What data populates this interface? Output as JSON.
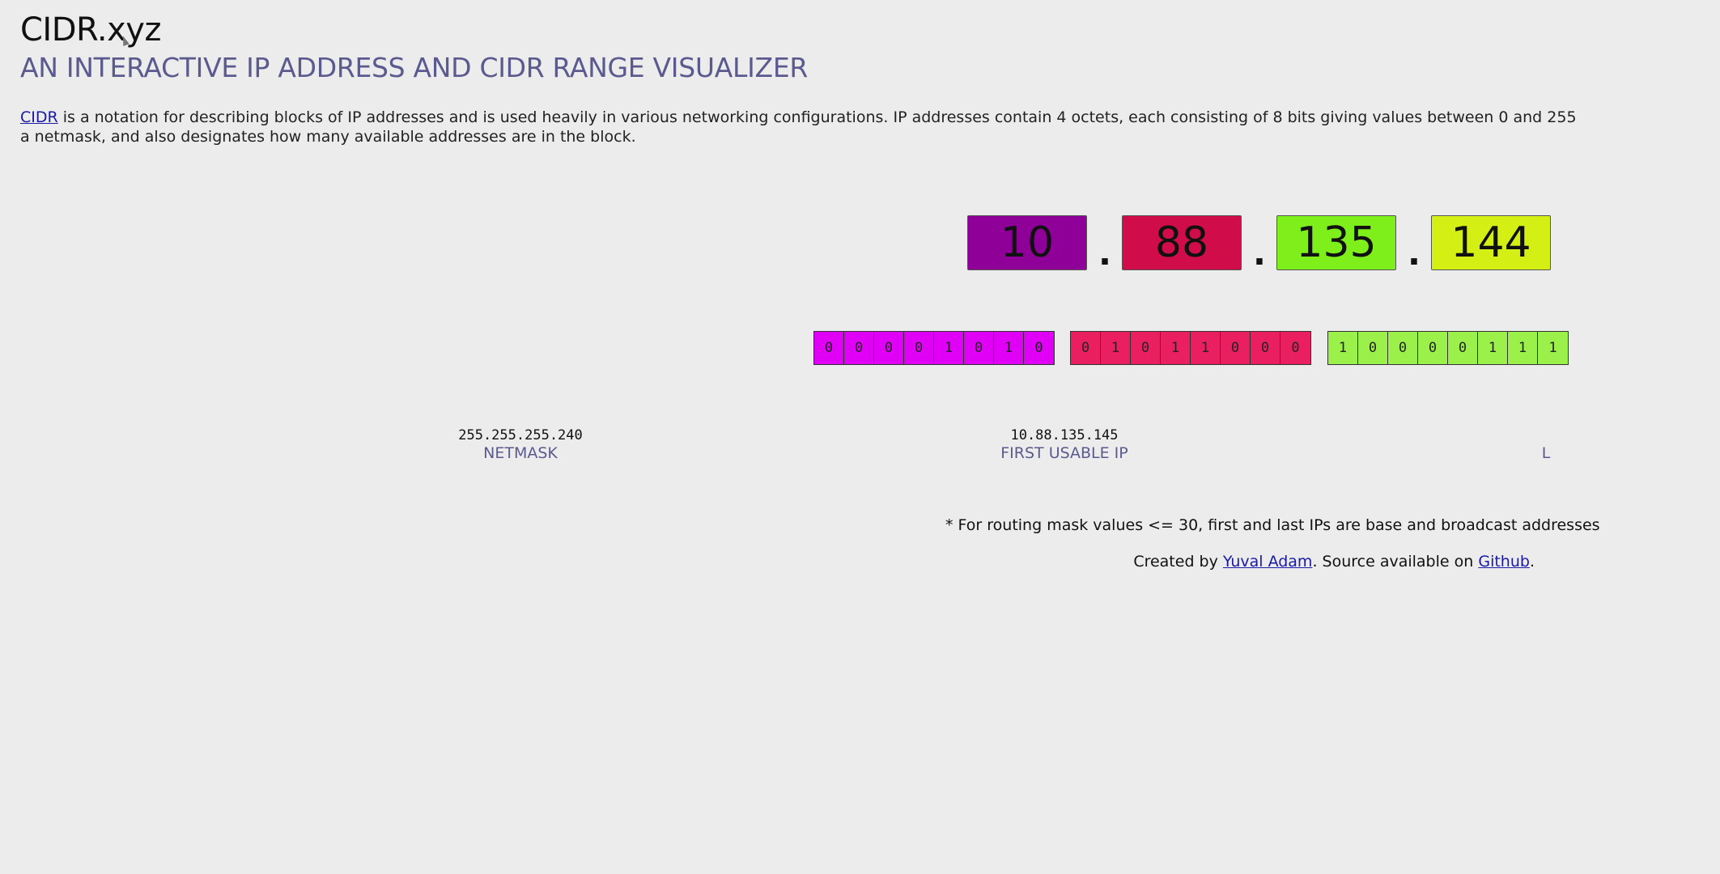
{
  "header": {
    "title": "CIDR.xyz",
    "subtitle": "AN INTERACTIVE IP ADDRESS AND CIDR RANGE VISUALIZER"
  },
  "intro": {
    "link_text": "CIDR",
    "line1_rest": " is a notation for describing blocks of IP addresses and is used heavily in various networking configurations. IP addresses contain 4 octets, each consisting of 8 bits giving values between 0 and 255",
    "line2": "a netmask, and also designates how many available addresses are in the block."
  },
  "ip": {
    "octets": [
      {
        "value": "10",
        "color": "#8e0097"
      },
      {
        "value": "88",
        "color": "#d00d4a"
      },
      {
        "value": "135",
        "color": "#7fef1c"
      },
      {
        "value": "144",
        "color": "#d3ef13"
      }
    ],
    "separator": "."
  },
  "bits": [
    {
      "color": "#e000f5",
      "values": [
        "0",
        "0",
        "0",
        "0",
        "1",
        "0",
        "1",
        "0"
      ]
    },
    {
      "color": "#ea1f62",
      "values": [
        "0",
        "1",
        "0",
        "1",
        "1",
        "0",
        "0",
        "0"
      ]
    },
    {
      "color": "#9cf04a",
      "values": [
        "1",
        "0",
        "0",
        "0",
        "0",
        "1",
        "1",
        "1"
      ]
    }
  ],
  "stats": {
    "netmask": {
      "value": "255.255.255.240",
      "label": "NETMASK"
    },
    "first_usable": {
      "value": "10.88.135.145",
      "label": "FIRST USABLE IP"
    },
    "last_usable_label_partial": "L"
  },
  "footnote": "* For routing mask values <= 30, first and last IPs are base and broadcast addresses",
  "credits": {
    "prefix": "Created by ",
    "author_link": "Yuval Adam",
    "middle": ". Source available on ",
    "github_link": "Github",
    "suffix": "."
  }
}
